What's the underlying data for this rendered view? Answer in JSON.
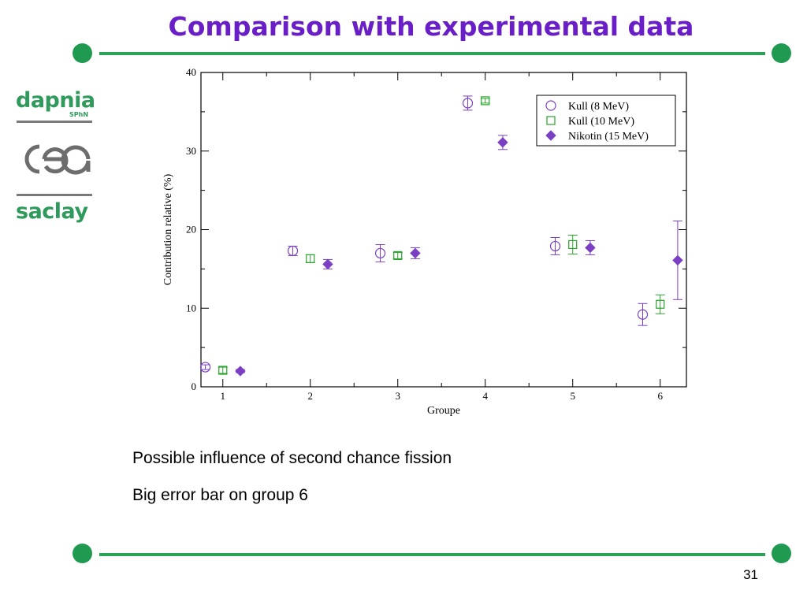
{
  "slide": {
    "title": "Comparison with experimental data",
    "page_number": "31",
    "bullets": [
      "Possible influence of second chance fission",
      "Big error bar on group 6"
    ],
    "accent_color": "#6a1ec8",
    "rule_color": "#2aa356",
    "dot_color": "#1f9a50"
  },
  "logos": {
    "dapnia": "dapnia",
    "dapnia_sub": "SPhN",
    "cea": "cea",
    "saclay": "saclay",
    "text_color": "#2f9a5c",
    "grey": "#7a7a7a"
  },
  "chart_data": {
    "type": "scatter",
    "title": "",
    "xlabel": "Groupe",
    "ylabel": "Contribution relative (%)",
    "xlim": [
      0.75,
      6.3
    ],
    "ylim": [
      0,
      40
    ],
    "xticks": [
      1,
      2,
      3,
      4,
      5,
      6
    ],
    "yticks": [
      0,
      10,
      20,
      30,
      40
    ],
    "grid": false,
    "legend_position": "top-right",
    "series": [
      {
        "name": "Kull (8 MeV)",
        "marker": "circle-open",
        "color": "#7b3fc4",
        "x": [
          0.8,
          1.8,
          2.8,
          3.8,
          4.8,
          5.8
        ],
        "y": [
          2.5,
          17.3,
          17.0,
          36.1,
          17.9,
          9.2
        ],
        "err": [
          0.3,
          0.6,
          1.1,
          0.9,
          1.1,
          1.4
        ]
      },
      {
        "name": "Kull (10 MeV)",
        "marker": "square-open",
        "color": "#2aa32a",
        "x": [
          1.0,
          2.0,
          3.0,
          4.0,
          5.0,
          6.0
        ],
        "y": [
          2.1,
          16.3,
          16.7,
          36.4,
          18.1,
          10.5
        ],
        "err": [
          0.4,
          0.5,
          0.4,
          0.3,
          1.2,
          1.2
        ]
      },
      {
        "name": "Nikotin (15 MeV)",
        "marker": "diamond-filled",
        "color": "#7b3fc4",
        "x": [
          1.2,
          2.2,
          3.2,
          4.2,
          5.2,
          6.2
        ],
        "y": [
          2.0,
          15.6,
          17.0,
          31.1,
          17.7,
          16.1
        ],
        "err": [
          0.2,
          0.6,
          0.7,
          0.9,
          0.9,
          5.0
        ]
      }
    ]
  }
}
